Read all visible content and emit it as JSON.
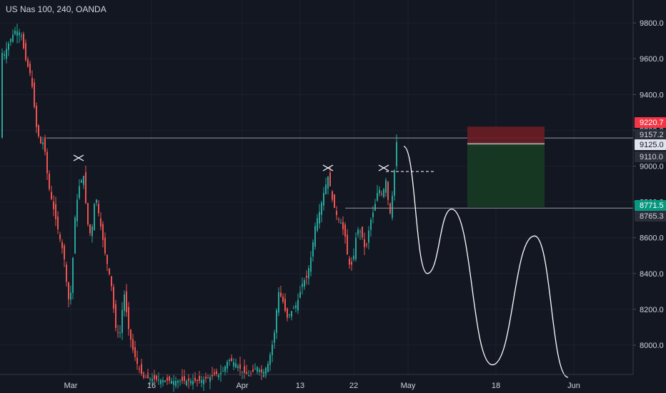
{
  "chart_title": "US Nas 100, 240, OANDA",
  "colors": {
    "background": "#131722",
    "up": "#26a69a",
    "down": "#ef5350",
    "axis_text": "#d1d4dc",
    "projection": "#ffffff",
    "stop_zone": "#6b1d23",
    "target_zone": "#163a24"
  },
  "chart_data": {
    "type": "candlestick",
    "symbol": "US Nas 100",
    "interval": "240",
    "source": "OANDA",
    "x_ticks": [
      "Mar",
      "16",
      "Apr",
      "13",
      "22",
      "May",
      "18",
      "Jun"
    ],
    "y_ticks": [
      8000,
      8200,
      8400,
      8600,
      8800,
      9000,
      9200,
      9400,
      9600,
      9800
    ],
    "ylim": [
      7830,
      9870
    ],
    "horizontal_levels": [
      9157.2,
      8765.3
    ],
    "price_tags": [
      {
        "value": 9220.7,
        "label": "9220.7",
        "style": "stop"
      },
      {
        "value": 9157.2,
        "label": "9157.2",
        "style": "level"
      },
      {
        "value": 9125.0,
        "label": "9125.0",
        "style": "entry"
      },
      {
        "value": 9110.0,
        "label": "9110.0",
        "style": "level"
      },
      {
        "value": 8771.5,
        "label": "8771.5",
        "style": "target"
      },
      {
        "value": 8765.3,
        "label": "8765.3",
        "style": "level"
      }
    ],
    "short_position": {
      "stop": 9220.7,
      "entry": 9125.0,
      "target": 8771.5
    },
    "swing_marks": [
      "x",
      "x",
      "x"
    ],
    "projection_path": [
      9110,
      8400,
      8760,
      7890,
      8610,
      7820
    ]
  }
}
